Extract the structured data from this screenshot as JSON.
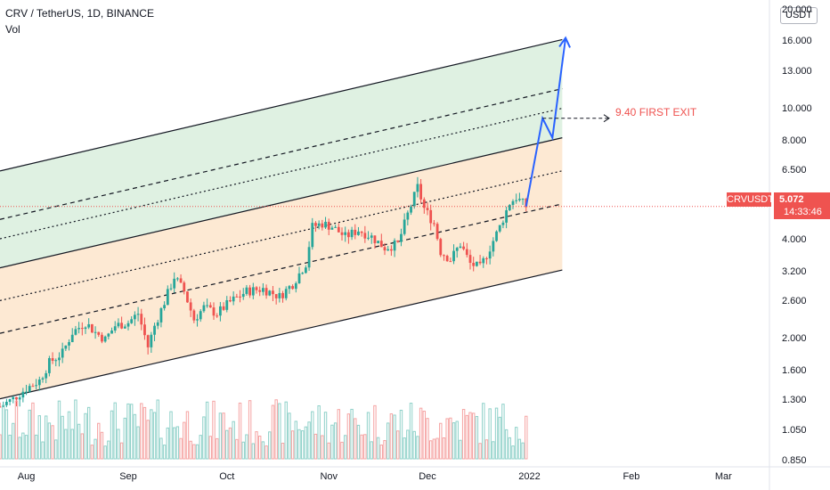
{
  "header": {
    "title": "CRV / TetherUS, 1D, BINANCE",
    "sub": "Vol",
    "currency": "USDT"
  },
  "price_tag": {
    "symbol": "CRVUSDT",
    "price": "5.072",
    "countdown": "14:33:46"
  },
  "annotation": {
    "exit_label": "9.40 FIRST EXIT"
  },
  "colors": {
    "up": "#26a69a",
    "down": "#ef5350",
    "upper_channel_fill": "#dff1e2",
    "lower_channel_fill": "#fde9d3",
    "arrow": "#2962ff",
    "line": "#131722"
  },
  "chart_data": {
    "type": "candlestick",
    "title": "CRV / TetherUS, 1D, BINANCE",
    "y_scale": "log",
    "ylim": [
      0.82,
      21.5
    ],
    "y_ticks": [
      "20.000",
      "16.000",
      "13.000",
      "10.000",
      "8.000",
      "6.500",
      "5.072",
      "4.000",
      "3.200",
      "2.600",
      "2.000",
      "1.600",
      "1.300",
      "1.050",
      "0.850"
    ],
    "x_ticks": [
      "Aug",
      "Sep",
      "Oct",
      "Nov",
      "Dec",
      "2022",
      "Feb",
      "Mar"
    ],
    "x_range": [
      "2021-07-24",
      "2022-03-15"
    ],
    "grid": false,
    "close_path": [
      [
        "2021-07-24",
        1.25
      ],
      [
        "2021-07-28",
        1.32
      ],
      [
        "2021-08-01",
        1.42
      ],
      [
        "2021-08-05",
        1.5
      ],
      [
        "2021-08-08",
        1.7
      ],
      [
        "2021-08-12",
        1.82
      ],
      [
        "2021-08-15",
        2.1
      ],
      [
        "2021-08-19",
        2.25
      ],
      [
        "2021-08-22",
        2.1
      ],
      [
        "2021-08-25",
        2.0
      ],
      [
        "2021-08-28",
        2.2
      ],
      [
        "2021-09-01",
        2.25
      ],
      [
        "2021-09-04",
        2.4
      ],
      [
        "2021-09-07",
        1.9
      ],
      [
        "2021-09-09",
        2.2
      ],
      [
        "2021-09-12",
        2.6
      ],
      [
        "2021-09-15",
        3.1
      ],
      [
        "2021-09-18",
        2.8
      ],
      [
        "2021-09-21",
        2.3
      ],
      [
        "2021-09-24",
        2.5
      ],
      [
        "2021-09-28",
        2.4
      ],
      [
        "2021-10-02",
        2.6
      ],
      [
        "2021-10-07",
        2.8
      ],
      [
        "2021-10-12",
        2.85
      ],
      [
        "2021-10-17",
        2.7
      ],
      [
        "2021-10-21",
        2.95
      ],
      [
        "2021-10-25",
        3.4
      ],
      [
        "2021-10-27",
        4.4
      ],
      [
        "2021-10-30",
        4.5
      ],
      [
        "2021-11-02",
        4.4
      ],
      [
        "2021-11-06",
        4.1
      ],
      [
        "2021-11-10",
        4.3
      ],
      [
        "2021-11-14",
        4.1
      ],
      [
        "2021-11-18",
        3.8
      ],
      [
        "2021-11-22",
        3.9
      ],
      [
        "2021-11-25",
        4.8
      ],
      [
        "2021-11-28",
        5.8
      ],
      [
        "2021-11-30",
        5.0
      ],
      [
        "2021-12-03",
        4.5
      ],
      [
        "2021-12-05",
        3.7
      ],
      [
        "2021-12-08",
        3.5
      ],
      [
        "2021-12-11",
        3.9
      ],
      [
        "2021-12-14",
        3.4
      ],
      [
        "2021-12-17",
        3.3
      ],
      [
        "2021-12-20",
        3.8
      ],
      [
        "2021-12-23",
        4.4
      ],
      [
        "2021-12-26",
        5.2
      ],
      [
        "2021-12-28",
        5.4
      ],
      [
        "2021-12-31",
        5.072
      ]
    ],
    "volume_scale_max": 1,
    "channels": {
      "lower": {
        "bottom": [
          [
            "2021-07-24",
            1.32
          ],
          [
            "2022-01-11",
            3.25
          ]
        ],
        "top": [
          [
            "2021-07-24",
            3.3
          ],
          [
            "2022-01-11",
            8.2
          ]
        ]
      },
      "upper": {
        "bottom": [
          [
            "2021-07-24",
            3.3
          ],
          [
            "2022-01-11",
            8.2
          ]
        ],
        "top": [
          [
            "2021-07-24",
            6.5
          ],
          [
            "2022-01-11",
            16.3
          ]
        ]
      }
    },
    "projection": [
      [
        "2021-12-31",
        5.072
      ],
      [
        "2022-01-05",
        9.4
      ],
      [
        "2022-01-08",
        8.2
      ],
      [
        "2022-01-12",
        16.5
      ]
    ],
    "annotations": [
      {
        "label": "9.40 FIRST EXIT",
        "y": 9.4
      }
    ],
    "last_price": 5.072
  }
}
